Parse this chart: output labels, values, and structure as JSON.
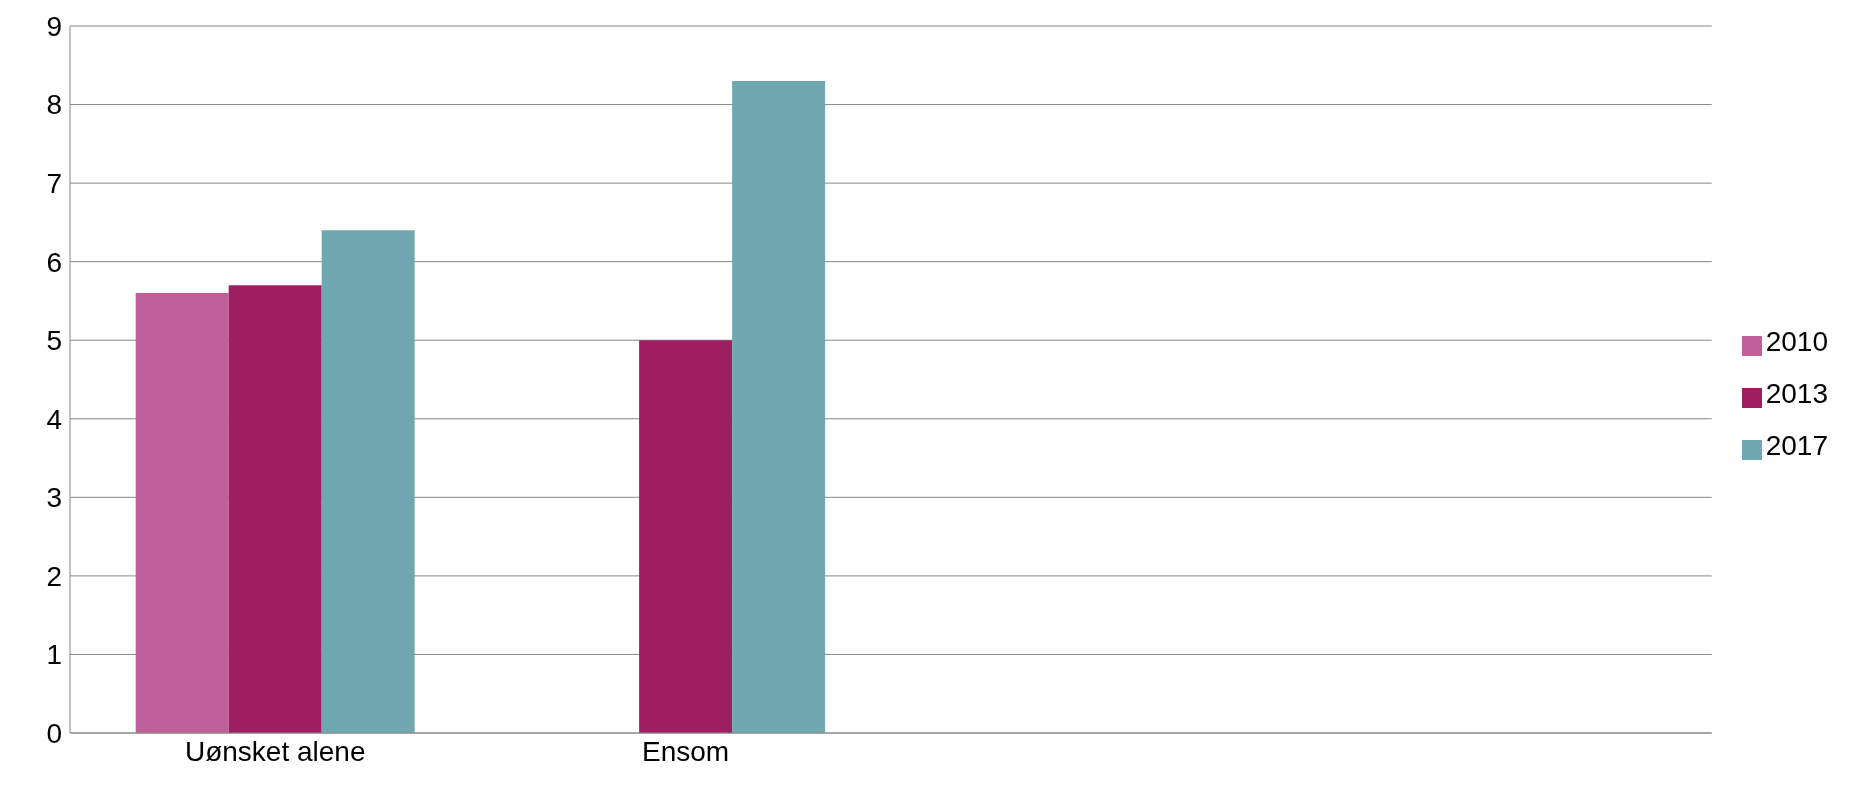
{
  "chart_data": {
    "type": "bar",
    "categories": [
      "Uønsket alene",
      "Ensom",
      null,
      null
    ],
    "series": [
      {
        "name": "2010",
        "color": "#c0609a",
        "values": [
          5.6,
          null,
          null,
          null
        ]
      },
      {
        "name": "2013",
        "color": "#9e1e62",
        "values": [
          5.7,
          5.0,
          null,
          null
        ]
      },
      {
        "name": "2017",
        "color": "#6fa8b0",
        "values": [
          6.4,
          8.3,
          null,
          null
        ]
      }
    ],
    "ylim": [
      0,
      9
    ],
    "yticks": [
      0,
      1,
      2,
      3,
      4,
      5,
      6,
      7,
      8,
      9
    ],
    "grid": "y",
    "legend": "right"
  }
}
